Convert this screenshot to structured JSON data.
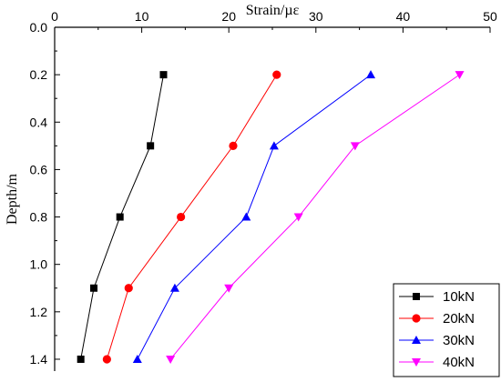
{
  "chart_data": {
    "type": "line",
    "title": "",
    "xlabel": "Strain/µε",
    "ylabel": "Depth/m",
    "x_axis_position": "top",
    "xlim": [
      0,
      50
    ],
    "ylim": [
      0.0,
      1.45
    ],
    "y_inverted": true,
    "x_ticks": [
      0,
      10,
      20,
      30,
      40,
      50
    ],
    "x_tick_labels": [
      "0",
      "10",
      "20",
      "30",
      "40",
      "50"
    ],
    "y_ticks": [
      0.0,
      0.2,
      0.4,
      0.6,
      0.8,
      1.0,
      1.2,
      1.4
    ],
    "y_tick_labels": [
      "0.0",
      "0.2",
      "0.4",
      "0.6",
      "0.8",
      "1.0",
      "1.2",
      "1.4"
    ],
    "grid": false,
    "legend_position": "bottom-right",
    "series": [
      {
        "name": "10kN",
        "color": "#000000",
        "marker": "square",
        "points": [
          {
            "strain": 12.5,
            "depth": 0.2
          },
          {
            "strain": 11.0,
            "depth": 0.5
          },
          {
            "strain": 7.5,
            "depth": 0.8
          },
          {
            "strain": 4.5,
            "depth": 1.1
          },
          {
            "strain": 3.0,
            "depth": 1.4
          }
        ]
      },
      {
        "name": "20kN",
        "color": "#ff0000",
        "marker": "circle",
        "points": [
          {
            "strain": 25.5,
            "depth": 0.2
          },
          {
            "strain": 20.5,
            "depth": 0.5
          },
          {
            "strain": 14.5,
            "depth": 0.8
          },
          {
            "strain": 8.5,
            "depth": 1.1
          },
          {
            "strain": 6.0,
            "depth": 1.4
          }
        ]
      },
      {
        "name": "30kN",
        "color": "#0000ff",
        "marker": "triangle-up",
        "points": [
          {
            "strain": 36.3,
            "depth": 0.2
          },
          {
            "strain": 25.2,
            "depth": 0.5
          },
          {
            "strain": 22.0,
            "depth": 0.8
          },
          {
            "strain": 13.8,
            "depth": 1.1
          },
          {
            "strain": 9.5,
            "depth": 1.4
          }
        ]
      },
      {
        "name": "40kN",
        "color": "#ff00ff",
        "marker": "triangle-down",
        "points": [
          {
            "strain": 46.5,
            "depth": 0.2
          },
          {
            "strain": 34.5,
            "depth": 0.5
          },
          {
            "strain": 28.0,
            "depth": 0.8
          },
          {
            "strain": 20.0,
            "depth": 1.1
          },
          {
            "strain": 13.3,
            "depth": 1.4
          }
        ]
      }
    ]
  }
}
